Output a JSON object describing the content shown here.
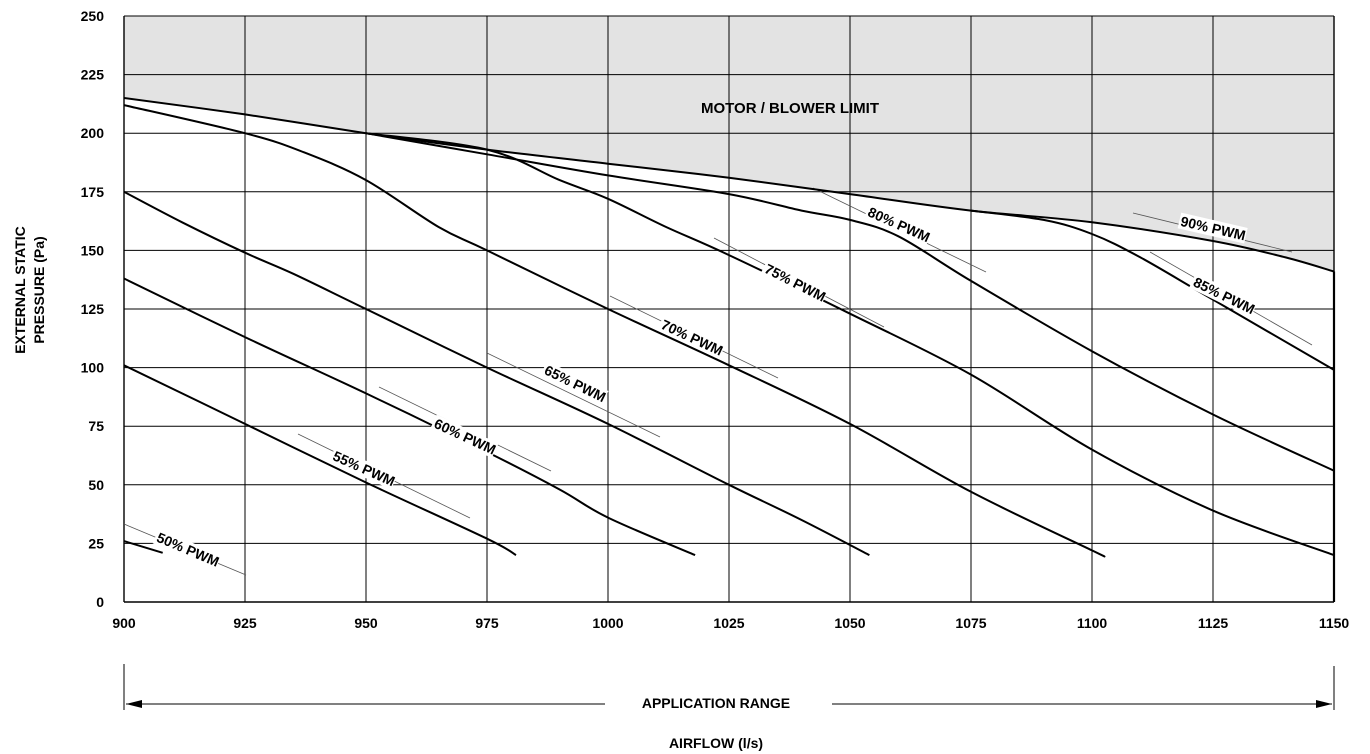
{
  "chart_data": {
    "type": "line",
    "title": "",
    "xlabel": "AIRFLOW (l/s)",
    "ylabel_lines": [
      "EXTERNAL STATIC",
      "PRESSURE (Pa)"
    ],
    "xlim": [
      900,
      1150
    ],
    "ylim": [
      0,
      250
    ],
    "x_ticks": [
      900,
      925,
      950,
      975,
      1000,
      1025,
      1050,
      1075,
      1100,
      1125,
      1150
    ],
    "y_ticks": [
      0,
      25,
      50,
      75,
      100,
      125,
      150,
      175,
      200,
      225,
      250
    ],
    "grid": true,
    "region_label": "MOTOR / BLOWER LIMIT",
    "range_label": "APPLICATION RANGE",
    "limit_curve": [
      [
        900,
        215
      ],
      [
        925,
        208
      ],
      [
        950,
        200
      ],
      [
        975,
        193
      ],
      [
        1000,
        187
      ],
      [
        1025,
        181
      ],
      [
        1050,
        174
      ],
      [
        1075,
        167
      ],
      [
        1100,
        162
      ],
      [
        1125,
        154
      ],
      [
        1140,
        147
      ],
      [
        1150,
        141
      ]
    ],
    "series": [
      {
        "name": "50% PWM",
        "points": [
          [
            900,
            26
          ],
          [
            908,
            21
          ]
        ]
      },
      {
        "name": "55% PWM",
        "points": [
          [
            900,
            101
          ],
          [
            925,
            76
          ],
          [
            950,
            51
          ],
          [
            975,
            27
          ],
          [
            981,
            20
          ]
        ]
      },
      {
        "name": "60% PWM",
        "points": [
          [
            900,
            138
          ],
          [
            925,
            113
          ],
          [
            950,
            89
          ],
          [
            975,
            64
          ],
          [
            990,
            48
          ],
          [
            1000,
            36
          ],
          [
            1018,
            20
          ]
        ]
      },
      {
        "name": "65% PWM",
        "points": [
          [
            900,
            175
          ],
          [
            912,
            162
          ],
          [
            925,
            149
          ],
          [
            935,
            140
          ],
          [
            950,
            125
          ],
          [
            975,
            100
          ],
          [
            1000,
            76
          ],
          [
            1025,
            50
          ],
          [
            1040,
            35
          ],
          [
            1054,
            20
          ]
        ]
      },
      {
        "name": "70% PWM",
        "points": [
          [
            900,
            212
          ],
          [
            925,
            200
          ],
          [
            937,
            192
          ],
          [
            950,
            180
          ],
          [
            965,
            160
          ],
          [
            975,
            150
          ],
          [
            1000,
            125
          ],
          [
            1025,
            101
          ],
          [
            1050,
            76
          ],
          [
            1075,
            47
          ],
          [
            1100,
            22
          ],
          [
            1102,
            20
          ]
        ]
      },
      {
        "name": "75% PWM",
        "points": [
          [
            950,
            200
          ],
          [
            975,
            193
          ],
          [
            990,
            180
          ],
          [
            1000,
            172
          ],
          [
            1012,
            160
          ],
          [
            1025,
            148
          ],
          [
            1050,
            123
          ],
          [
            1075,
            97
          ],
          [
            1100,
            65
          ],
          [
            1125,
            39
          ],
          [
            1150,
            20
          ]
        ]
      },
      {
        "name": "80% PWM",
        "points": [
          [
            950,
            200
          ],
          [
            975,
            191
          ],
          [
            1000,
            182
          ],
          [
            1025,
            174
          ],
          [
            1040,
            167
          ],
          [
            1050,
            163
          ],
          [
            1060,
            156
          ],
          [
            1075,
            137
          ],
          [
            1100,
            107
          ],
          [
            1125,
            80
          ],
          [
            1150,
            56
          ]
        ]
      },
      {
        "name": "85% PWM",
        "points": [
          [
            1075,
            167
          ],
          [
            1090,
            163
          ],
          [
            1100,
            157
          ],
          [
            1110,
            147
          ],
          [
            1125,
            129
          ],
          [
            1150,
            99
          ]
        ]
      },
      {
        "name": "90% PWM",
        "points": []
      }
    ],
    "curve_labels": [
      "50% PWM",
      "55% PWM",
      "60% PWM",
      "65% PWM",
      "70% PWM",
      "75% PWM",
      "80% PWM",
      "85% PWM",
      "90% PWM"
    ]
  }
}
